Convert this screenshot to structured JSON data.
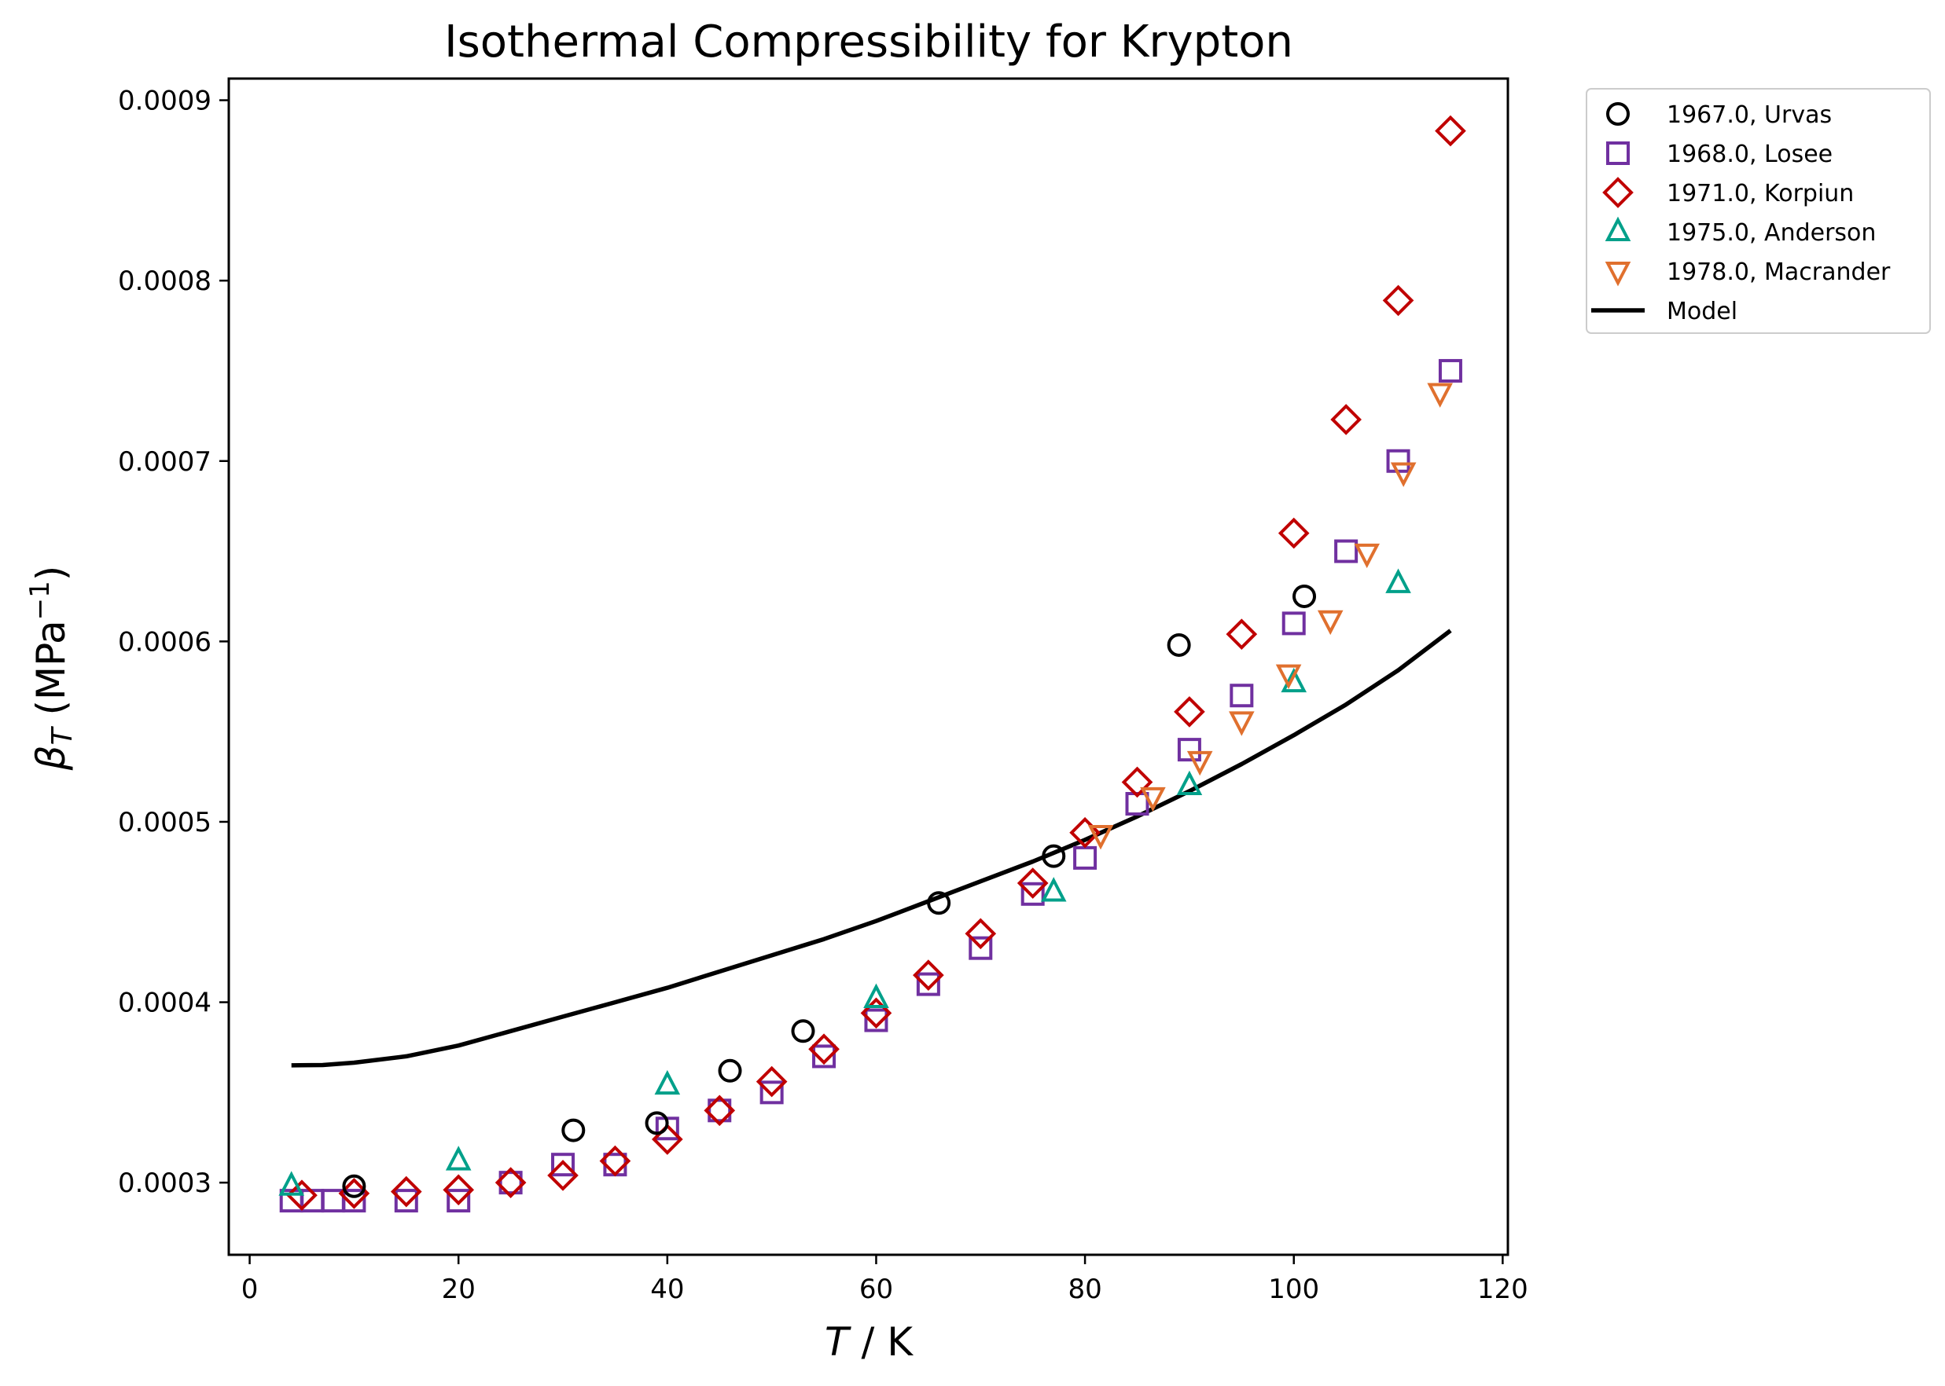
{
  "chart_data": {
    "type": "scatter",
    "title": "Isothermal Compressibility for Krypton",
    "xlabel": {
      "symbol": "T",
      "rest": " / K"
    },
    "ylabel": {
      "symbol": "β",
      "sub": "T",
      "rest": " (MPa",
      "sup": "−1",
      "close": ")"
    },
    "xlim": [
      -2,
      120.5
    ],
    "ylim": [
      0.00026,
      0.000912
    ],
    "xticks": [
      0,
      20,
      40,
      60,
      80,
      100,
      120
    ],
    "xtick_labels": [
      "0",
      "20",
      "40",
      "60",
      "80",
      "100",
      "120"
    ],
    "yticks": [
      0.0003,
      0.0004,
      0.0005,
      0.0006,
      0.0007,
      0.0008,
      0.0009
    ],
    "ytick_labels": [
      "0.0003",
      "0.0004",
      "0.0005",
      "0.0006",
      "0.0007",
      "0.0008",
      "0.0009"
    ],
    "grid": false,
    "legend_position": "outside top-right",
    "series": [
      {
        "name": "1967.0, Urvas",
        "marker": "circle",
        "color": "#000000",
        "points": [
          [
            10,
            0.000298
          ],
          [
            31,
            0.000329
          ],
          [
            39,
            0.000333
          ],
          [
            46,
            0.000362
          ],
          [
            53,
            0.000384
          ],
          [
            66,
            0.000455
          ],
          [
            77,
            0.000481
          ],
          [
            89,
            0.000598
          ],
          [
            101,
            0.000625
          ]
        ]
      },
      {
        "name": "1968.0, Losee",
        "marker": "square",
        "color": "#7030a0",
        "points": [
          [
            4,
            0.00029
          ],
          [
            6,
            0.00029
          ],
          [
            8,
            0.00029
          ],
          [
            10,
            0.00029
          ],
          [
            15,
            0.00029
          ],
          [
            20,
            0.00029
          ],
          [
            25,
            0.0003
          ],
          [
            30,
            0.00031
          ],
          [
            35,
            0.00031
          ],
          [
            40,
            0.00033
          ],
          [
            45,
            0.00034
          ],
          [
            50,
            0.00035
          ],
          [
            55,
            0.00037
          ],
          [
            60,
            0.00039
          ],
          [
            65,
            0.00041
          ],
          [
            70,
            0.00043
          ],
          [
            75,
            0.00046
          ],
          [
            80,
            0.00048
          ],
          [
            85,
            0.00051
          ],
          [
            90,
            0.00054
          ],
          [
            95,
            0.00057
          ],
          [
            100,
            0.00061
          ],
          [
            105,
            0.00065
          ],
          [
            110,
            0.0007
          ],
          [
            115,
            0.00075
          ]
        ]
      },
      {
        "name": "1971.0, Korpiun",
        "marker": "diamond",
        "color": "#c00000",
        "points": [
          [
            5,
            0.000293
          ],
          [
            10,
            0.000294
          ],
          [
            15,
            0.000295
          ],
          [
            20,
            0.000296
          ],
          [
            25,
            0.0003
          ],
          [
            30,
            0.000304
          ],
          [
            35,
            0.000312
          ],
          [
            40,
            0.000324
          ],
          [
            45,
            0.00034
          ],
          [
            50,
            0.000356
          ],
          [
            55,
            0.000374
          ],
          [
            60,
            0.000394
          ],
          [
            65,
            0.000415
          ],
          [
            70,
            0.000438
          ],
          [
            75,
            0.000466
          ],
          [
            80,
            0.000494
          ],
          [
            85,
            0.000522
          ],
          [
            90,
            0.000561
          ],
          [
            95,
            0.000604
          ],
          [
            100,
            0.00066
          ],
          [
            105,
            0.000723
          ],
          [
            110,
            0.000789
          ],
          [
            115,
            0.000883
          ]
        ]
      },
      {
        "name": "1975.0, Anderson",
        "marker": "triangle-up",
        "color": "#00a08a",
        "points": [
          [
            4,
            0.000298
          ],
          [
            20,
            0.000312
          ],
          [
            40,
            0.000354
          ],
          [
            60,
            0.000402
          ],
          [
            77,
            0.000461
          ],
          [
            90,
            0.00052
          ],
          [
            100,
            0.000577
          ],
          [
            110,
            0.000632
          ]
        ]
      },
      {
        "name": "1978.0, Macrander",
        "marker": "triangle-down",
        "color": "#e0702e",
        "points": [
          [
            81.5,
            0.000493
          ],
          [
            86.5,
            0.000514
          ],
          [
            91,
            0.000534
          ],
          [
            95,
            0.000556
          ],
          [
            99.5,
            0.000582
          ],
          [
            103.5,
            0.000612
          ],
          [
            107,
            0.000649
          ],
          [
            110.5,
            0.000694
          ],
          [
            114,
            0.000738
          ]
        ]
      },
      {
        "name": "Model",
        "marker": "line",
        "color": "#000000",
        "points": [
          [
            4,
            0.000365
          ],
          [
            7,
            0.0003652
          ],
          [
            10,
            0.0003665
          ],
          [
            15,
            0.00037
          ],
          [
            20,
            0.000376
          ],
          [
            25,
            0.000384
          ],
          [
            30,
            0.000392
          ],
          [
            35,
            0.0004
          ],
          [
            40,
            0.000408
          ],
          [
            45,
            0.000417
          ],
          [
            50,
            0.000426
          ],
          [
            55,
            0.000435
          ],
          [
            60,
            0.000445
          ],
          [
            65,
            0.000456
          ],
          [
            70,
            0.000467
          ],
          [
            75,
            0.000478
          ],
          [
            80,
            0.00049
          ],
          [
            85,
            0.000503
          ],
          [
            90,
            0.000517
          ],
          [
            95,
            0.000532
          ],
          [
            100,
            0.000548
          ],
          [
            105,
            0.000565
          ],
          [
            110,
            0.000584
          ],
          [
            115,
            0.000606
          ]
        ]
      }
    ]
  }
}
